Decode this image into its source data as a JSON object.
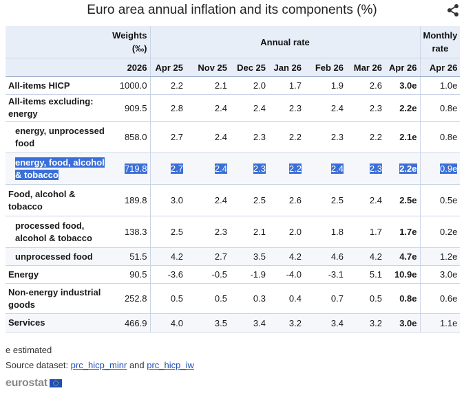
{
  "title": "Euro area annual inflation and its components (%)",
  "icons": {
    "share": "share-icon"
  },
  "header": {
    "weights": "Weights (‰)",
    "annual_rate": "Annual rate",
    "monthly_rate": "Monthly rate",
    "columns": [
      "2026",
      "Apr 25",
      "Nov 25",
      "Dec 25",
      "Jan 26",
      "Feb 26",
      "Mar 26",
      "Apr 26",
      "Apr 26"
    ]
  },
  "rows": [
    {
      "label": "All-items HICP",
      "values": [
        "1000.0",
        "2.2",
        "2.1",
        "2.0",
        "1.7",
        "1.9",
        "2.6",
        "3.0e",
        "1.0e"
      ]
    },
    {
      "label": "All-items excluding: energy",
      "values": [
        "909.5",
        "2.8",
        "2.4",
        "2.4",
        "2.3",
        "2.4",
        "2.3",
        "2.2e",
        "0.8e"
      ]
    },
    {
      "label": "energy, unprocessed food",
      "values": [
        "858.0",
        "2.7",
        "2.4",
        "2.3",
        "2.2",
        "2.3",
        "2.2",
        "2.1e",
        "0.8e"
      ]
    },
    {
      "label": "energy, food, alcohol & tobacco",
      "values": [
        "719.8",
        "2.7",
        "2.4",
        "2.3",
        "2.2",
        "2.4",
        "2.3",
        "2.2e",
        "0.9e"
      ]
    },
    {
      "label": "Food, alcohol & tobacco",
      "values": [
        "189.8",
        "3.0",
        "2.4",
        "2.5",
        "2.6",
        "2.5",
        "2.4",
        "2.5e",
        "0.5e"
      ]
    },
    {
      "label": "processed food, alcohol & tobacco",
      "values": [
        "138.3",
        "2.5",
        "2.3",
        "2.1",
        "2.0",
        "1.8",
        "1.7",
        "1.7e",
        "0.2e"
      ]
    },
    {
      "label": "unprocessed food",
      "values": [
        "51.5",
        "4.2",
        "2.7",
        "3.5",
        "4.2",
        "4.6",
        "4.2",
        "4.7e",
        "1.2e"
      ]
    },
    {
      "label": "Energy",
      "values": [
        "90.5",
        "-3.6",
        "-0.5",
        "-1.9",
        "-4.0",
        "-3.1",
        "5.1",
        "10.9e",
        "3.0e"
      ]
    },
    {
      "label": "Non-energy industrial goods",
      "values": [
        "252.8",
        "0.5",
        "0.5",
        "0.3",
        "0.4",
        "0.7",
        "0.5",
        "0.8e",
        "0.6e"
      ]
    },
    {
      "label": "Services",
      "values": [
        "466.9",
        "4.0",
        "3.5",
        "3.4",
        "3.2",
        "3.4",
        "3.2",
        "3.0e",
        "1.1e"
      ]
    }
  ],
  "footer": {
    "note": "e estimated",
    "source_prefix": "Source dataset: ",
    "link1": "prc_hicp_minr",
    "and": " and ",
    "link2": "prc_hicp_iw",
    "logo": "eurostat"
  }
}
